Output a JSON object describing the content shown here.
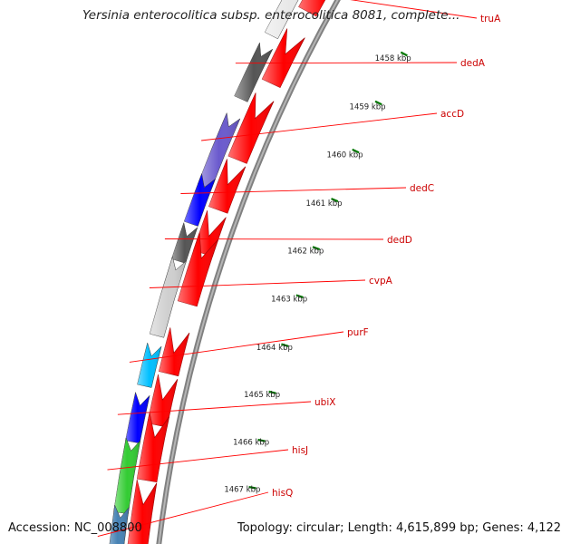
{
  "title": "Yersinia enterocolitica subsp. enterocolitica 8081, complete...",
  "footer": {
    "accession": "Accession: NC_008800",
    "summary": "Topology: circular; Length: 4,615,899 bp; Genes: 4,122"
  },
  "ruler": {
    "labels": [
      "1458 kbp",
      "1459 kbp",
      "1460 kbp",
      "1461 kbp",
      "1462 kbp",
      "1463 kbp",
      "1464 kbp",
      "1465 kbp",
      "1466 kbp",
      "1467 kbp"
    ]
  },
  "genes": [
    {
      "name": "truA",
      "color": "#e8e8e8",
      "arrow": "#ff0000"
    },
    {
      "name": "dedA",
      "color": "#555555",
      "arrow": "#ff0000"
    },
    {
      "name": "accD",
      "color": "#6a5acd",
      "arrow": "#ff0000"
    },
    {
      "name": "dedC",
      "color": "#0000ff",
      "arrow": "#ff0000"
    },
    {
      "name": "dedD",
      "color": "#555555",
      "arrow": "#ff0000"
    },
    {
      "name": "cvpA",
      "color": "#cfcfcf",
      "arrow": "#ff0000"
    },
    {
      "name": "purF",
      "color": "#00bfff",
      "arrow": "#ff0000"
    },
    {
      "name": "ubiX",
      "color": "#0000ff",
      "arrow": "#ff0000"
    },
    {
      "name": "hisJ",
      "color": "#33cc33",
      "arrow": "#ff0000"
    },
    {
      "name": "hisQ",
      "color": "#4682b4",
      "arrow": "#ff0000"
    }
  ],
  "colors": {
    "backbone": "#808080",
    "ticks": "#007700",
    "label_line": "#ff0000",
    "label_text": "#cc0000"
  }
}
